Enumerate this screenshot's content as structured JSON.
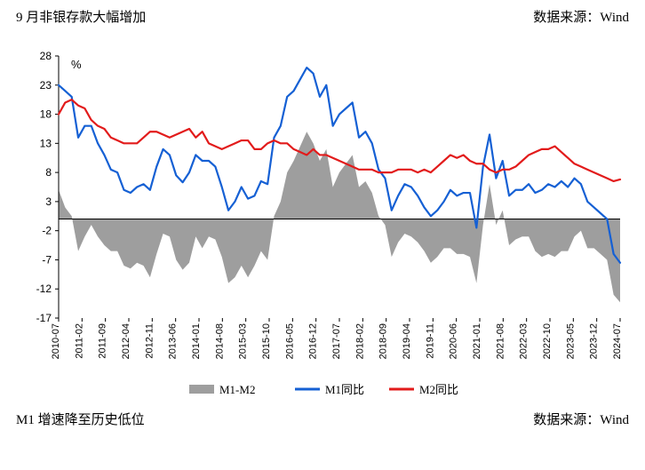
{
  "header": {
    "title": "9 月非银存款大幅增加",
    "source_label": "数据来源：Wind"
  },
  "footer": {
    "title": "M1 增速降至历史低位",
    "source_label": "数据来源：Wind"
  },
  "chart": {
    "type": "line-area-combo",
    "unit_label": "%",
    "background_color": "#ffffff",
    "axis_color": "#000000",
    "ylim": [
      -17,
      28
    ],
    "ytick_step": 5,
    "yticks": [
      28,
      23,
      18,
      13,
      8,
      3,
      -2,
      -7,
      -12,
      -17
    ],
    "label_fontsize": 12,
    "x_labels": [
      "2010-07",
      "2011-02",
      "2011-09",
      "2012-04",
      "2012-11",
      "2013-06",
      "2014-01",
      "2014-08",
      "2015-03",
      "2015-10",
      "2016-05",
      "2016-12",
      "2017-07",
      "2018-02",
      "2018-09",
      "2019-04",
      "2019-11",
      "2020-06",
      "2021-01",
      "2021-08",
      "2022-03",
      "2022-10",
      "2023-05",
      "2023-12",
      "2024-07"
    ],
    "legend": {
      "position": "bottom",
      "items": [
        {
          "label": "M1-M2",
          "type": "area",
          "color": "#9e9e9e"
        },
        {
          "label": "M1同比",
          "type": "line",
          "color": "#1560d4"
        },
        {
          "label": "M2同比",
          "type": "line",
          "color": "#e21b1b"
        }
      ]
    },
    "line_width": 2.2,
    "series": {
      "M1": {
        "color": "#1560d4",
        "values": [
          23,
          22,
          21,
          14,
          16,
          16,
          13,
          11,
          8.5,
          8,
          5,
          4.5,
          5.5,
          6,
          5,
          9,
          12,
          11,
          7.5,
          6.3,
          8,
          11,
          10,
          10,
          9,
          5.5,
          1.5,
          3,
          5.5,
          3.5,
          4,
          6.5,
          6,
          14,
          16,
          21,
          22,
          24,
          26,
          25,
          21,
          23,
          16,
          18,
          19,
          20,
          14,
          15,
          13,
          8.5,
          7,
          1.5,
          4,
          6,
          5.5,
          4,
          2,
          0.5,
          1.5,
          3,
          5,
          4,
          4.5,
          4.5,
          -1.5,
          9,
          14.5,
          7,
          10,
          4,
          5,
          5,
          6,
          4.5,
          5,
          6,
          5.5,
          6.5,
          5.5,
          7,
          6,
          3,
          2,
          1,
          0,
          -6,
          -7.5
        ]
      },
      "M2": {
        "color": "#e21b1b",
        "values": [
          18,
          20,
          20.5,
          19.5,
          19,
          17,
          16,
          15.5,
          14,
          13.5,
          13,
          13,
          13,
          14,
          15,
          15,
          14.5,
          14,
          14.5,
          15,
          15.5,
          14,
          15,
          13,
          12.5,
          12,
          12.5,
          13,
          13.5,
          13.5,
          12,
          12,
          13,
          13.5,
          13,
          13,
          12,
          11.5,
          11,
          12,
          11,
          11,
          10.5,
          10,
          9.5,
          9,
          8.5,
          8.5,
          8.5,
          8,
          8,
          8,
          8.5,
          8.5,
          8.5,
          8,
          8.5,
          8,
          9,
          10,
          11,
          10.5,
          11,
          10,
          9.5,
          9.5,
          8.5,
          8,
          8.5,
          8.5,
          9,
          10,
          11,
          11.5,
          12,
          12,
          12.5,
          11.5,
          10.5,
          9.5,
          9,
          8.5,
          8,
          7.5,
          7,
          6.5,
          6.8
        ]
      },
      "M1_M2": {
        "color": "#9e9e9e",
        "fill_opacity": 1.0,
        "values": [
          5,
          2,
          0.5,
          -5.5,
          -3,
          -1,
          -3,
          -4.5,
          -5.5,
          -5.5,
          -8,
          -8.5,
          -7.5,
          -8,
          -10,
          -6,
          -2.5,
          -3,
          -7,
          -8.7,
          -7.5,
          -3,
          -5,
          -3,
          -3.5,
          -6.5,
          -11,
          -10,
          -8,
          -10,
          -8,
          -5.5,
          -7,
          0.5,
          3,
          8,
          10,
          12.5,
          15,
          13,
          10,
          12,
          5.5,
          8,
          9.5,
          11,
          5.5,
          6.5,
          4.5,
          0.5,
          -1,
          -6.5,
          -4,
          -2.5,
          -3,
          -4,
          -5.5,
          -7.5,
          -6.5,
          -5,
          -5,
          -6,
          -6,
          -6.5,
          -11,
          -1,
          6,
          -1,
          1.5,
          -4.5,
          -3.5,
          -3,
          -3,
          -5.5,
          -6.5,
          -6,
          -6.5,
          -5.5,
          -5.5,
          -3,
          -2,
          -5,
          -5,
          -6,
          -7,
          -13,
          -14.3
        ]
      }
    }
  }
}
